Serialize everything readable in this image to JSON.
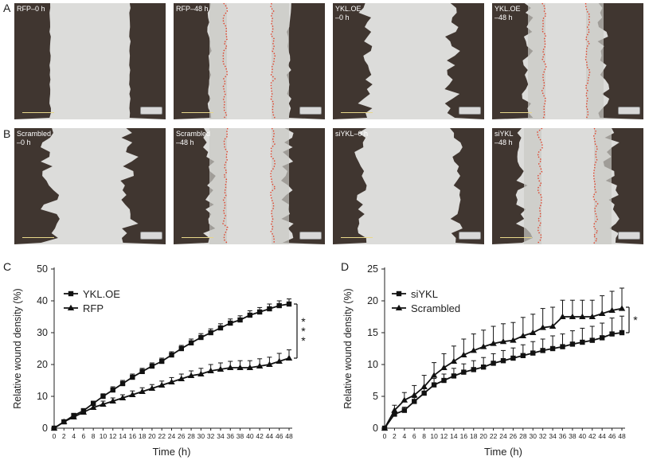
{
  "figure": {
    "panel_letters": [
      "A",
      "B",
      "C",
      "D"
    ]
  },
  "micrographs": {
    "row_a": [
      {
        "label": "RFP–0 h",
        "time": "0 h",
        "has_trace": false
      },
      {
        "label": "RFP–48 h",
        "time": "48 h",
        "has_trace": true
      },
      {
        "label": "YKL.OE\n–0 h",
        "time": "0 h",
        "has_trace": false
      },
      {
        "label": "YKL.OE\n–48 h",
        "time": "48 h",
        "has_trace": true
      }
    ],
    "row_b": [
      {
        "label": "Scrambled\n–0 h",
        "time": "0 h",
        "has_trace": false
      },
      {
        "label": "Scrambled\n–48 h",
        "time": "48 h",
        "has_trace": true
      },
      {
        "label": "siYKL–0 h",
        "time": "0 h",
        "has_trace": false
      },
      {
        "label": "siYKL\n–48 h",
        "time": "48 h",
        "has_trace": true
      }
    ],
    "colors": {
      "cell_layer": "#403630",
      "wound": "#dcdcda",
      "trace": "#e0432c"
    }
  },
  "chart_data": [
    {
      "type": "line",
      "panel": "C",
      "xlabel": "Time (h)",
      "ylabel": "Relative wound density (%)",
      "xlim": [
        0,
        48
      ],
      "ylim": [
        0,
        50
      ],
      "x_ticks": [
        0,
        2,
        4,
        6,
        8,
        10,
        12,
        14,
        16,
        18,
        20,
        22,
        24,
        26,
        28,
        30,
        32,
        34,
        36,
        38,
        40,
        42,
        44,
        46,
        48
      ],
      "y_ticks": [
        0,
        10,
        20,
        30,
        40,
        50
      ],
      "x": [
        0,
        2,
        4,
        6,
        8,
        10,
        12,
        14,
        16,
        18,
        20,
        22,
        24,
        26,
        28,
        30,
        32,
        34,
        36,
        38,
        40,
        42,
        44,
        46,
        48
      ],
      "series": [
        {
          "name": "YKL.OE",
          "marker": "square",
          "values": [
            0,
            2,
            4,
            5.5,
            7.8,
            10,
            12,
            14,
            16,
            17.8,
            19.5,
            21,
            23,
            25,
            26.8,
            28.5,
            30,
            31.5,
            33,
            34,
            35.5,
            36.5,
            37.5,
            38.5,
            39
          ],
          "errors": [
            0,
            0.5,
            0.5,
            0.6,
            0.7,
            0.8,
            1,
            1,
            1,
            1,
            1,
            1,
            1,
            1,
            1.2,
            1.2,
            1.2,
            1.3,
            1.3,
            1.3,
            1.4,
            1.4,
            1.5,
            1.5,
            1.6
          ]
        },
        {
          "name": "RFP",
          "marker": "triangle",
          "values": [
            0,
            2,
            3.5,
            5,
            6.5,
            7.5,
            8.5,
            9.5,
            10.5,
            11.5,
            12.5,
            13.5,
            14.5,
            15.5,
            16.5,
            17,
            18,
            18.5,
            19,
            19,
            19,
            19.5,
            20,
            21,
            22
          ],
          "errors": [
            0,
            0.5,
            0.6,
            0.7,
            0.8,
            1,
            1,
            1,
            1.2,
            1.2,
            1.2,
            1.3,
            1.4,
            1.5,
            1.5,
            1.8,
            2,
            2,
            2,
            2.2,
            2.2,
            2.3,
            2.3,
            2.5,
            2.6
          ]
        }
      ],
      "significance": {
        "text": "***",
        "between": [
          22,
          39
        ]
      },
      "legend": "top-left"
    },
    {
      "type": "line",
      "panel": "D",
      "xlabel": "Time (h)",
      "ylabel": "Relative wound density (%)",
      "xlim": [
        0,
        48
      ],
      "ylim": [
        0,
        25
      ],
      "x_ticks": [
        0,
        2,
        4,
        6,
        8,
        10,
        12,
        14,
        16,
        18,
        20,
        22,
        24,
        26,
        28,
        30,
        32,
        34,
        36,
        38,
        40,
        42,
        44,
        46,
        48
      ],
      "y_ticks": [
        0,
        5,
        10,
        15,
        20,
        25
      ],
      "x": [
        0,
        2,
        4,
        6,
        8,
        10,
        12,
        14,
        16,
        18,
        20,
        22,
        24,
        26,
        28,
        30,
        32,
        34,
        36,
        38,
        40,
        42,
        44,
        46,
        48
      ],
      "series": [
        {
          "name": "siYKL",
          "marker": "square",
          "values": [
            0,
            2.2,
            2.8,
            4.2,
            5.5,
            6.8,
            7.5,
            8.2,
            8.8,
            9.2,
            9.6,
            10.2,
            10.6,
            11,
            11.4,
            11.8,
            12.2,
            12.5,
            12.8,
            13.2,
            13.5,
            13.8,
            14.2,
            14.8,
            15
          ],
          "errors": [
            0,
            0.4,
            0.5,
            0.6,
            0.8,
            1,
            1,
            1.2,
            1.3,
            1.4,
            1.5,
            1.5,
            1.6,
            1.6,
            1.7,
            1.8,
            1.8,
            2,
            2,
            2.1,
            2.2,
            2.2,
            2.3,
            2.5,
            2.6
          ]
        },
        {
          "name": "Scrambled",
          "marker": "triangle",
          "values": [
            0,
            2.8,
            4.4,
            5.2,
            6.5,
            8.3,
            9.5,
            10.5,
            11.5,
            12.2,
            12.8,
            13.3,
            13.6,
            13.8,
            14.5,
            15,
            15.8,
            16,
            17.5,
            17.5,
            17.5,
            17.5,
            18,
            18.5,
            18.8
          ],
          "errors": [
            0,
            0.8,
            1.2,
            1.5,
            1.8,
            2,
            2.2,
            2.4,
            2.5,
            2.6,
            2.6,
            2.7,
            2.8,
            2.8,
            2.9,
            2.9,
            3,
            3,
            2.6,
            2.6,
            2.6,
            2.6,
            2.8,
            3,
            3.2
          ]
        }
      ],
      "significance": {
        "text": "*",
        "between": [
          15,
          19
        ]
      },
      "legend": "top-left"
    }
  ]
}
